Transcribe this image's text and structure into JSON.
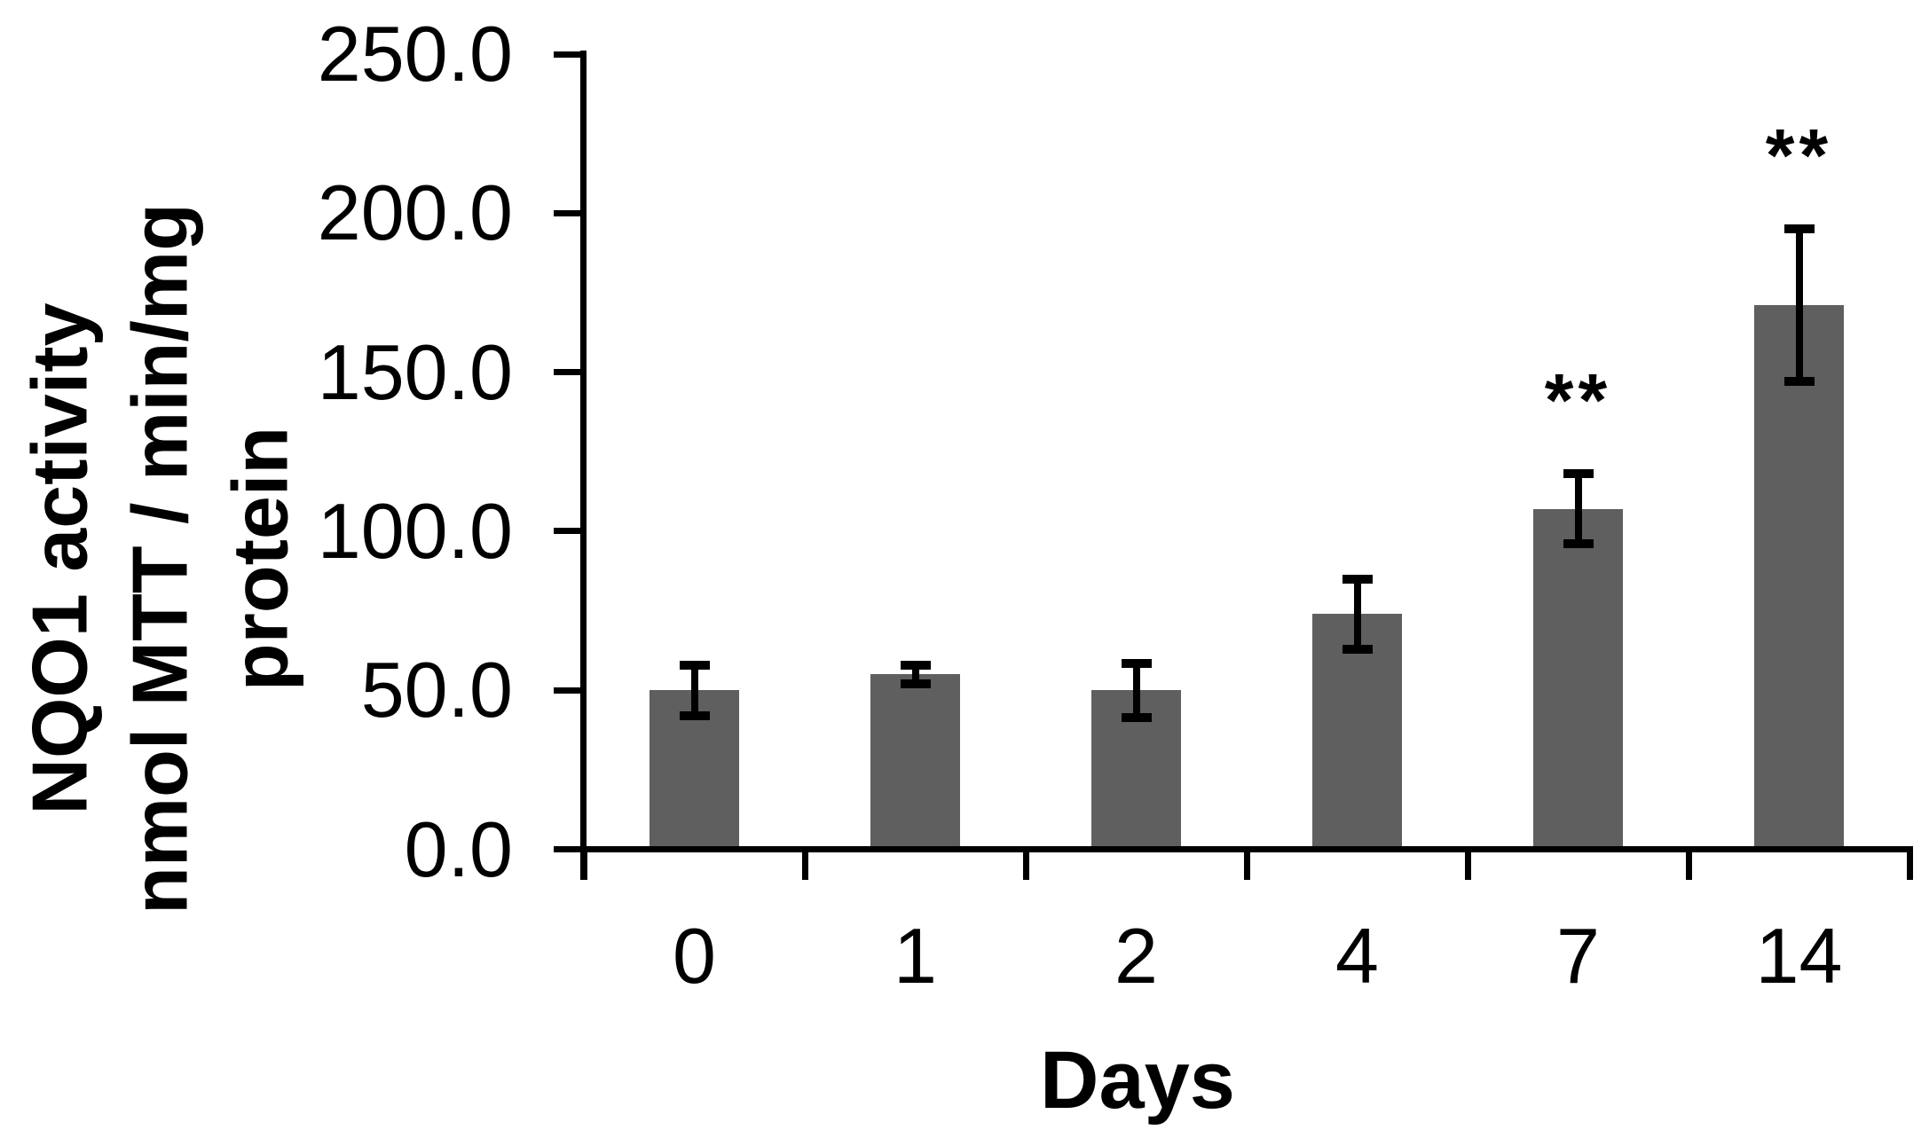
{
  "chart_data": {
    "type": "bar",
    "title": "",
    "xlabel": "Days",
    "ylabel_lines": [
      "NQO1 activity",
      "nmol MTT / min/mg",
      "protein"
    ],
    "categories": [
      "0",
      "1",
      "2",
      "4",
      "7",
      "14"
    ],
    "values": [
      50,
      55,
      50,
      74,
      107,
      171
    ],
    "errors": [
      8,
      3,
      8.5,
      11,
      11,
      24
    ],
    "annotations": [
      "",
      "",
      "",
      "",
      "**",
      "**"
    ],
    "ylim": [
      0,
      250
    ],
    "ytick_step": 50,
    "ytick_labels": [
      "0.0",
      "50.0",
      "100.0",
      "150.0",
      "200.0",
      "250.0"
    ],
    "grid": false,
    "legend": "none",
    "bar_color": "#5f5f5f",
    "axis_color": "#000000",
    "background_color": "#ffffff"
  }
}
